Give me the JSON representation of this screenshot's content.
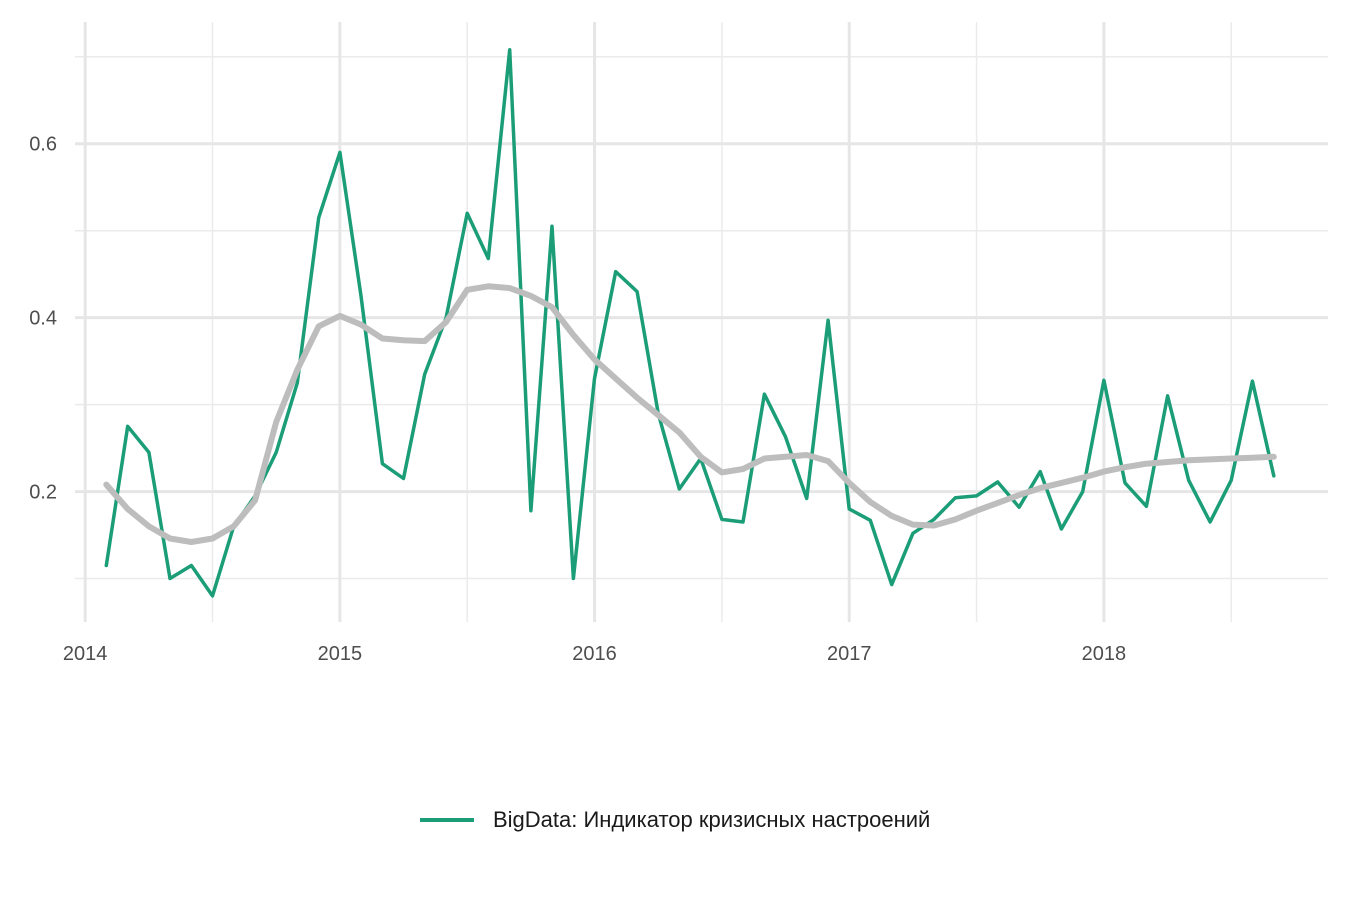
{
  "chart_data": {
    "type": "line",
    "title": "",
    "xlabel": "",
    "ylabel": "",
    "xlim": [
      2013.96,
      2018.88
    ],
    "ylim": [
      0.05,
      0.74
    ],
    "x_ticks": [
      2014,
      2015,
      2016,
      2017,
      2018
    ],
    "x_tick_labels": [
      "2014",
      "2015",
      "2016",
      "2017",
      "2018"
    ],
    "x_minor_ticks": [
      2014.5,
      2015.5,
      2016.5,
      2017.5,
      2018.5
    ],
    "y_ticks": [
      0.2,
      0.4,
      0.6
    ],
    "y_tick_labels": [
      "0.2",
      "0.4",
      "0.6"
    ],
    "y_minor_ticks": [
      0.1,
      0.3,
      0.5,
      0.7
    ],
    "grid": true,
    "legend_position": "bottom",
    "series": [
      {
        "name": "BigData: Индикатор кризисных настроений",
        "color": "#1b9e77",
        "in_legend": true,
        "x": [
          2014.083,
          2014.167,
          2014.25,
          2014.333,
          2014.417,
          2014.5,
          2014.583,
          2014.667,
          2014.75,
          2014.833,
          2014.917,
          2015.0,
          2015.083,
          2015.167,
          2015.25,
          2015.333,
          2015.417,
          2015.5,
          2015.583,
          2015.667,
          2015.75,
          2015.833,
          2015.917,
          2016.0,
          2016.083,
          2016.167,
          2016.25,
          2016.333,
          2016.417,
          2016.5,
          2016.583,
          2016.667,
          2016.75,
          2016.833,
          2016.917,
          2017.0,
          2017.083,
          2017.167,
          2017.25,
          2017.333,
          2017.417,
          2017.5,
          2017.583,
          2017.667,
          2017.75,
          2017.833,
          2017.917,
          2018.0,
          2018.083,
          2018.167,
          2018.25,
          2018.333,
          2018.417,
          2018.5,
          2018.583,
          2018.667
        ],
        "y": [
          0.115,
          0.275,
          0.245,
          0.1,
          0.115,
          0.08,
          0.16,
          0.195,
          0.245,
          0.325,
          0.515,
          0.59,
          0.425,
          0.232,
          0.215,
          0.335,
          0.4,
          0.52,
          0.468,
          0.708,
          0.178,
          0.505,
          0.1,
          0.33,
          0.453,
          0.43,
          0.29,
          0.203,
          0.238,
          0.168,
          0.165,
          0.312,
          0.263,
          0.192,
          0.397,
          0.18,
          0.167,
          0.093,
          0.152,
          0.168,
          0.193,
          0.195,
          0.211,
          0.182,
          0.223,
          0.157,
          0.2,
          0.328,
          0.21,
          0.183,
          0.31,
          0.213,
          0.165,
          0.213,
          0.327,
          0.218
        ]
      },
      {
        "name": "",
        "color": "#bdbdbd",
        "in_legend": false,
        "x": [
          2014.083,
          2014.167,
          2014.25,
          2014.333,
          2014.417,
          2014.5,
          2014.583,
          2014.667,
          2014.75,
          2014.833,
          2014.917,
          2015.0,
          2015.083,
          2015.167,
          2015.25,
          2015.333,
          2015.417,
          2015.5,
          2015.583,
          2015.667,
          2015.75,
          2015.833,
          2015.917,
          2016.0,
          2016.083,
          2016.167,
          2016.25,
          2016.333,
          2016.417,
          2016.5,
          2016.583,
          2016.667,
          2016.75,
          2016.833,
          2016.917,
          2017.0,
          2017.083,
          2017.167,
          2017.25,
          2017.333,
          2017.417,
          2017.5,
          2017.583,
          2017.667,
          2017.75,
          2017.833,
          2017.917,
          2018.0,
          2018.083,
          2018.167,
          2018.25,
          2018.333,
          2018.417,
          2018.5,
          2018.583,
          2018.667
        ],
        "y": [
          0.208,
          0.18,
          0.16,
          0.146,
          0.142,
          0.146,
          0.16,
          0.19,
          0.28,
          0.34,
          0.39,
          0.402,
          0.392,
          0.376,
          0.374,
          0.373,
          0.395,
          0.432,
          0.436,
          0.434,
          0.425,
          0.412,
          0.38,
          0.352,
          0.33,
          0.308,
          0.288,
          0.268,
          0.24,
          0.222,
          0.226,
          0.238,
          0.24,
          0.242,
          0.235,
          0.21,
          0.188,
          0.172,
          0.162,
          0.161,
          0.168,
          0.178,
          0.187,
          0.196,
          0.204,
          0.21,
          0.216,
          0.223,
          0.228,
          0.232,
          0.234,
          0.236,
          0.237,
          0.238,
          0.239,
          0.24
        ]
      }
    ]
  }
}
